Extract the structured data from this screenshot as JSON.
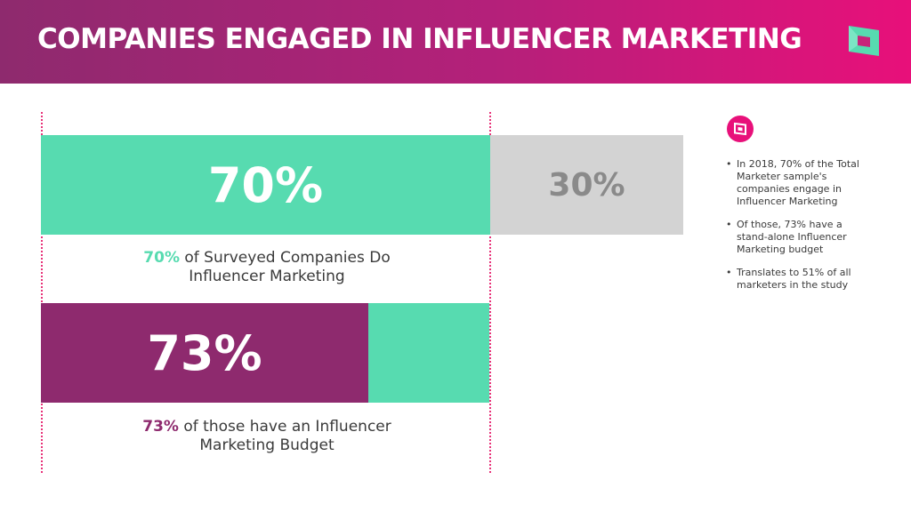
{
  "header": {
    "title": "COMPANIES ENGAGED IN INFLUENCER MARKETING",
    "logo_icon": "brand-logo-icon"
  },
  "colors": {
    "teal": "#57dbb0",
    "purple": "#8e2a6e",
    "gray": "#d3d3d3",
    "gray_text": "#8a8a8a",
    "accent": "#e8107a"
  },
  "chart_data": [
    {
      "type": "bar",
      "orientation": "horizontal",
      "stacked": true,
      "segments": [
        {
          "label": "70%",
          "value": 70
        },
        {
          "label": "30%",
          "value": 30
        }
      ],
      "caption": {
        "highlight": "70%",
        "text": " of Surveyed Companies Do Influencer Marketing"
      }
    },
    {
      "type": "bar",
      "orientation": "horizontal",
      "stacked": true,
      "segments": [
        {
          "label": "73%",
          "value": 73
        },
        {
          "label": "",
          "value": 27
        }
      ],
      "caption": {
        "highlight": "73%",
        "text": " of those have an Influencer Marketing Budget"
      }
    }
  ],
  "sidebar": {
    "icon": "brand-badge-icon",
    "notes": [
      "In 2018, 70% of the Total Marketer sample's companies engage in Influencer Marketing",
      "Of those, 73% have a stand-alone Influencer Marketing budget",
      "Translates to 51% of all marketers in the study"
    ]
  }
}
